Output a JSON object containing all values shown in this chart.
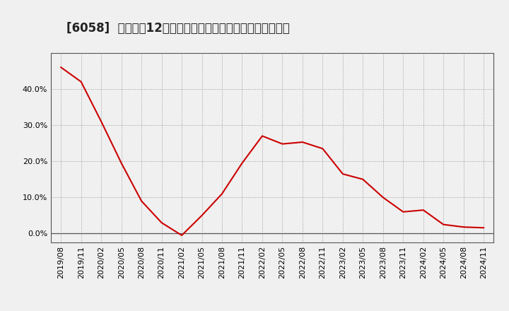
{
  "title": "[6058]  売上高の12か月移動合計の対前年同期増減率の推移",
  "x_labels": [
    "2019/08",
    "2019/11",
    "2020/02",
    "2020/05",
    "2020/08",
    "2020/11",
    "2021/02",
    "2021/05",
    "2021/08",
    "2021/11",
    "2022/02",
    "2022/05",
    "2022/08",
    "2022/11",
    "2023/02",
    "2023/05",
    "2023/08",
    "2023/11",
    "2024/02",
    "2024/05",
    "2024/08",
    "2024/11"
  ],
  "values": [
    0.46,
    0.42,
    0.31,
    0.195,
    0.09,
    0.03,
    -0.005,
    0.05,
    0.11,
    0.195,
    0.27,
    0.248,
    0.253,
    0.235,
    0.165,
    0.15,
    0.1,
    0.06,
    0.065,
    0.025,
    0.018,
    0.016
  ],
  "line_color": "#cc0000",
  "background_color": "#f0f0f0",
  "plot_bg_color": "#f0f0f0",
  "grid_color": "#999999",
  "border_color": "#555555",
  "zero_line_color": "#555555",
  "ylim_min": -0.025,
  "ylim_max": 0.5,
  "yticks": [
    0.0,
    0.1,
    0.2,
    0.3,
    0.4
  ],
  "title_fontsize": 12,
  "tick_fontsize": 8,
  "title_color": "#222222"
}
